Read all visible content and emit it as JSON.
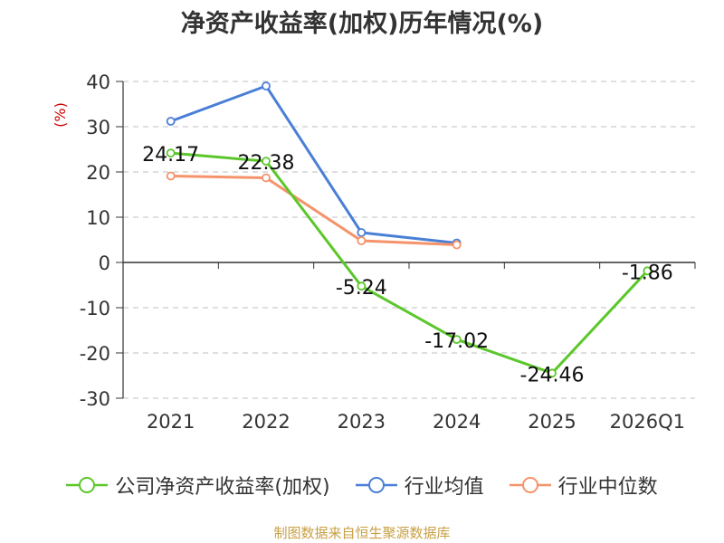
{
  "chart_data": {
    "type": "line",
    "title": "净资产收益率(加权)历年情况(%)",
    "ylabel": "(%)",
    "categories": [
      "2021",
      "2022",
      "2023",
      "2024",
      "2025",
      "2026Q1"
    ],
    "ylim": [
      -30,
      40
    ],
    "yticks": [
      "40",
      "30",
      "20",
      "10",
      "0",
      "-10",
      "-20",
      "-30"
    ],
    "grid": true,
    "legend_position": "bottom",
    "series": [
      {
        "name": "公司净资产收益率(加权)",
        "color": "#5bc72b",
        "values": [
          24.17,
          22.38,
          -5.24,
          -17.02,
          -24.46,
          -1.86
        ],
        "labels": [
          "24.17",
          "22.38",
          "-5.24",
          "-17.02",
          "-24.46",
          "-1.86"
        ]
      },
      {
        "name": "行业均值",
        "color": "#4a7fd6",
        "values": [
          31.2,
          39.0,
          6.6,
          4.3,
          null,
          null
        ]
      },
      {
        "name": "行业中位数",
        "color": "#f5936a",
        "values": [
          19.1,
          18.7,
          4.8,
          3.9,
          null,
          null
        ]
      }
    ]
  },
  "source": "制图数据来自恒生聚源数据库"
}
